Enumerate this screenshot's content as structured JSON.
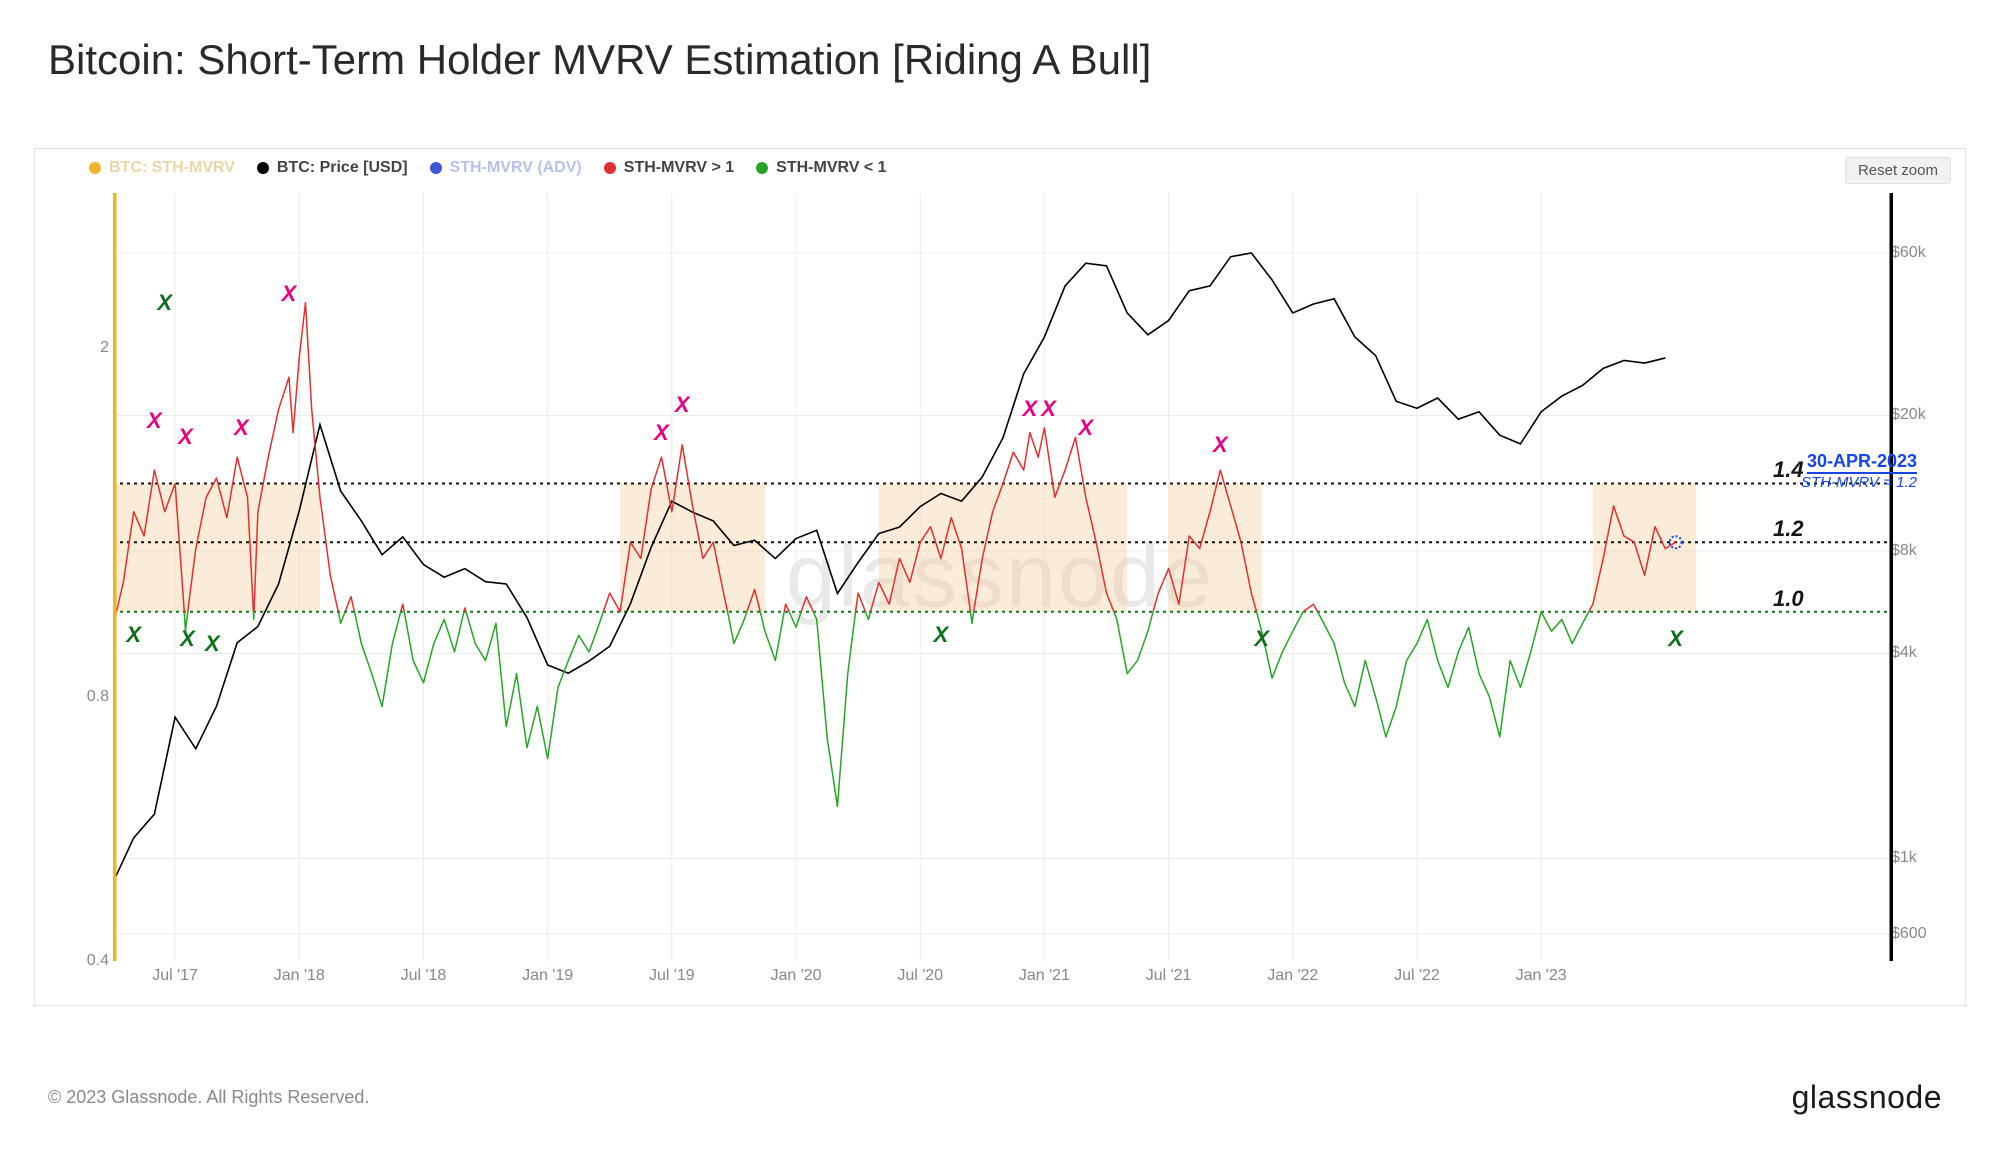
{
  "title": "Bitcoin: Short-Term Holder MVRV Estimation  [Riding A Bull]",
  "copyright": "© 2023 Glassnode. All Rights Reserved.",
  "brand": "glassnode",
  "watermark": "glassnode",
  "reset_label": "Reset zoom",
  "legend": [
    {
      "label": "BTC: STH-MVRV",
      "color": "#f0b42b",
      "muted": true
    },
    {
      "label": "BTC: Price [USD]",
      "color": "#000000",
      "muted": false
    },
    {
      "label": "STH-MVRV (ADV)",
      "color": "#3b57d6",
      "muted": true
    },
    {
      "label": "STH-MVRV > 1",
      "color": "#e22f2f",
      "muted": false
    },
    {
      "label": "STH-MVRV < 1",
      "color": "#2aa22a",
      "muted": false
    }
  ],
  "chart": {
    "type": "line-dual-axis",
    "background_color": "#ffffff",
    "grid_color": "#ececec",
    "plot_border_color": "#d6d6d6",
    "left_axis_color": "#f0b42b",
    "right_axis_color": "#000000",
    "x": {
      "domain_months": [
        0,
        86
      ],
      "ticks": [
        {
          "m": 3,
          "label": "Jul '17"
        },
        {
          "m": 9,
          "label": "Jan '18"
        },
        {
          "m": 15,
          "label": "Jul '18"
        },
        {
          "m": 21,
          "label": "Jan '19"
        },
        {
          "m": 27,
          "label": "Jul '19"
        },
        {
          "m": 33,
          "label": "Jan '20"
        },
        {
          "m": 39,
          "label": "Jul '20"
        },
        {
          "m": 45,
          "label": "Jan '21"
        },
        {
          "m": 51,
          "label": "Jul '21"
        },
        {
          "m": 57,
          "label": "Jan '22"
        },
        {
          "m": 63,
          "label": "Jul '22"
        },
        {
          "m": 69,
          "label": "Jan '23"
        }
      ]
    },
    "y_left": {
      "scale": "log",
      "domain": [
        0.4,
        3.0
      ],
      "ticks": [
        {
          "v": 0.4,
          "label": "0.4"
        },
        {
          "v": 0.8,
          "label": "0.8"
        },
        {
          "v": 2,
          "label": "2"
        }
      ],
      "grid_at": [
        0.4,
        0.8,
        2
      ]
    },
    "y_right": {
      "scale": "log",
      "domain": [
        500,
        90000
      ],
      "ticks": [
        {
          "v": 600,
          "label": "$600"
        },
        {
          "v": 1000,
          "label": "$1k"
        },
        {
          "v": 4000,
          "label": "$4k"
        },
        {
          "v": 8000,
          "label": "$8k"
        },
        {
          "v": 20000,
          "label": "$20k"
        },
        {
          "v": 60000,
          "label": "$60k"
        }
      ],
      "grid_at": [
        600,
        1000,
        4000,
        8000,
        20000,
        60000
      ]
    },
    "ref_lines": [
      {
        "v": 1.0,
        "label": "1.0",
        "color": "#12781a",
        "dash": "3 4",
        "width": 2
      },
      {
        "v": 1.2,
        "label": "1.2",
        "color": "#111111",
        "dash": "3 4",
        "width": 2
      },
      {
        "v": 1.4,
        "label": "1.4",
        "color": "#111111",
        "dash": "3 4",
        "width": 2
      }
    ],
    "shaded_bands": {
      "color": "#f5cd98",
      "opacity": 0.38,
      "y_from": 1.0,
      "y_to": 1.4,
      "x_ranges_m": [
        [
          0,
          10
        ],
        [
          24.5,
          31.5
        ],
        [
          37,
          49
        ],
        [
          51,
          55.5
        ],
        [
          71.5,
          76.5
        ]
      ]
    },
    "price_series": {
      "color": "#000000",
      "width": 1.6,
      "points": [
        [
          0,
          850
        ],
        [
          1,
          1150
        ],
        [
          2,
          1350
        ],
        [
          3,
          2600
        ],
        [
          4,
          2100
        ],
        [
          5,
          2800
        ],
        [
          6,
          4300
        ],
        [
          7,
          4800
        ],
        [
          8,
          6400
        ],
        [
          9,
          10500
        ],
        [
          10,
          18800
        ],
        [
          11,
          12000
        ],
        [
          12,
          9800
        ],
        [
          13,
          7800
        ],
        [
          14,
          8800
        ],
        [
          15,
          7300
        ],
        [
          16,
          6700
        ],
        [
          17,
          7100
        ],
        [
          18,
          6500
        ],
        [
          19,
          6400
        ],
        [
          20,
          5100
        ],
        [
          21,
          3700
        ],
        [
          22,
          3500
        ],
        [
          23,
          3800
        ],
        [
          24,
          4200
        ],
        [
          25,
          5600
        ],
        [
          26,
          8200
        ],
        [
          27,
          11200
        ],
        [
          28,
          10400
        ],
        [
          29,
          9800
        ],
        [
          30,
          8300
        ],
        [
          31,
          8600
        ],
        [
          32,
          7600
        ],
        [
          33,
          8700
        ],
        [
          34,
          9200
        ],
        [
          35,
          6000
        ],
        [
          36,
          7400
        ],
        [
          37,
          9000
        ],
        [
          38,
          9400
        ],
        [
          39,
          10800
        ],
        [
          40,
          11800
        ],
        [
          41,
          11200
        ],
        [
          42,
          13200
        ],
        [
          43,
          17200
        ],
        [
          44,
          26500
        ],
        [
          45,
          34000
        ],
        [
          46,
          48000
        ],
        [
          47,
          56000
        ],
        [
          48,
          55000
        ],
        [
          49,
          40000
        ],
        [
          50,
          34500
        ],
        [
          51,
          38000
        ],
        [
          52,
          46500
        ],
        [
          53,
          48000
        ],
        [
          54,
          58500
        ],
        [
          55,
          60000
        ],
        [
          56,
          50000
        ],
        [
          57,
          40000
        ],
        [
          58,
          42500
        ],
        [
          59,
          44000
        ],
        [
          60,
          34000
        ],
        [
          61,
          30000
        ],
        [
          62,
          22000
        ],
        [
          63,
          21000
        ],
        [
          64,
          22500
        ],
        [
          65,
          19500
        ],
        [
          66,
          20500
        ],
        [
          67,
          17500
        ],
        [
          68,
          16500
        ],
        [
          69,
          20500
        ],
        [
          70,
          22800
        ],
        [
          71,
          24500
        ],
        [
          72,
          27500
        ],
        [
          73,
          29000
        ],
        [
          74,
          28500
        ],
        [
          75,
          29500
        ]
      ]
    },
    "mvrv_series": {
      "color_above": "#e22f2f",
      "color_below": "#29a329",
      "width": 1.5,
      "points": [
        [
          0,
          0.96
        ],
        [
          0.5,
          1.08
        ],
        [
          1,
          1.3
        ],
        [
          1.5,
          1.22
        ],
        [
          2,
          1.45
        ],
        [
          2.5,
          1.3
        ],
        [
          3,
          1.4
        ],
        [
          3.5,
          0.95
        ],
        [
          4,
          1.18
        ],
        [
          4.5,
          1.35
        ],
        [
          5,
          1.42
        ],
        [
          5.5,
          1.28
        ],
        [
          6,
          1.5
        ],
        [
          6.5,
          1.35
        ],
        [
          6.8,
          0.98
        ],
        [
          7,
          1.3
        ],
        [
          7.5,
          1.5
        ],
        [
          8,
          1.7
        ],
        [
          8.5,
          1.85
        ],
        [
          8.7,
          1.6
        ],
        [
          9,
          1.95
        ],
        [
          9.3,
          2.25
        ],
        [
          9.6,
          1.7
        ],
        [
          10,
          1.35
        ],
        [
          10.5,
          1.1
        ],
        [
          11,
          0.97
        ],
        [
          11.5,
          1.04
        ],
        [
          12,
          0.92
        ],
        [
          12.5,
          0.85
        ],
        [
          13,
          0.78
        ],
        [
          13.5,
          0.92
        ],
        [
          14,
          1.02
        ],
        [
          14.5,
          0.88
        ],
        [
          15,
          0.83
        ],
        [
          15.5,
          0.92
        ],
        [
          16,
          0.98
        ],
        [
          16.5,
          0.9
        ],
        [
          17,
          1.01
        ],
        [
          17.5,
          0.92
        ],
        [
          18,
          0.88
        ],
        [
          18.5,
          0.97
        ],
        [
          19,
          0.74
        ],
        [
          19.5,
          0.85
        ],
        [
          20,
          0.7
        ],
        [
          20.5,
          0.78
        ],
        [
          21,
          0.68
        ],
        [
          21.5,
          0.82
        ],
        [
          22,
          0.88
        ],
        [
          22.5,
          0.94
        ],
        [
          23,
          0.9
        ],
        [
          23.5,
          0.97
        ],
        [
          24,
          1.05
        ],
        [
          24.5,
          1.0
        ],
        [
          25,
          1.2
        ],
        [
          25.5,
          1.15
        ],
        [
          26,
          1.38
        ],
        [
          26.5,
          1.5
        ],
        [
          27,
          1.3
        ],
        [
          27.5,
          1.55
        ],
        [
          28,
          1.32
        ],
        [
          28.5,
          1.15
        ],
        [
          29,
          1.2
        ],
        [
          29.5,
          1.05
        ],
        [
          30,
          0.92
        ],
        [
          30.5,
          0.98
        ],
        [
          31,
          1.06
        ],
        [
          31.5,
          0.95
        ],
        [
          32,
          0.88
        ],
        [
          32.5,
          1.02
        ],
        [
          33,
          0.96
        ],
        [
          33.5,
          1.04
        ],
        [
          34,
          0.98
        ],
        [
          34.5,
          0.72
        ],
        [
          35,
          0.6
        ],
        [
          35.5,
          0.85
        ],
        [
          36,
          1.05
        ],
        [
          36.5,
          0.98
        ],
        [
          37,
          1.08
        ],
        [
          37.5,
          1.02
        ],
        [
          38,
          1.15
        ],
        [
          38.5,
          1.08
        ],
        [
          39,
          1.2
        ],
        [
          39.5,
          1.25
        ],
        [
          40,
          1.15
        ],
        [
          40.5,
          1.28
        ],
        [
          41,
          1.18
        ],
        [
          41.5,
          0.97
        ],
        [
          42,
          1.15
        ],
        [
          42.5,
          1.3
        ],
        [
          43,
          1.4
        ],
        [
          43.5,
          1.52
        ],
        [
          44,
          1.45
        ],
        [
          44.3,
          1.6
        ],
        [
          44.7,
          1.5
        ],
        [
          45,
          1.62
        ],
        [
          45.5,
          1.35
        ],
        [
          46,
          1.45
        ],
        [
          46.5,
          1.58
        ],
        [
          47,
          1.35
        ],
        [
          47.5,
          1.2
        ],
        [
          48,
          1.05
        ],
        [
          48.5,
          0.98
        ],
        [
          49,
          0.85
        ],
        [
          49.5,
          0.88
        ],
        [
          50,
          0.95
        ],
        [
          50.5,
          1.05
        ],
        [
          51,
          1.12
        ],
        [
          51.5,
          1.02
        ],
        [
          52,
          1.22
        ],
        [
          52.5,
          1.18
        ],
        [
          53,
          1.3
        ],
        [
          53.5,
          1.45
        ],
        [
          54,
          1.32
        ],
        [
          54.5,
          1.2
        ],
        [
          55,
          1.05
        ],
        [
          55.5,
          0.95
        ],
        [
          56,
          0.84
        ],
        [
          56.5,
          0.9
        ],
        [
          57,
          0.95
        ],
        [
          57.5,
          1.0
        ],
        [
          58,
          1.02
        ],
        [
          58.5,
          0.97
        ],
        [
          59,
          0.92
        ],
        [
          59.5,
          0.83
        ],
        [
          60,
          0.78
        ],
        [
          60.5,
          0.88
        ],
        [
          61,
          0.8
        ],
        [
          61.5,
          0.72
        ],
        [
          62,
          0.78
        ],
        [
          62.5,
          0.88
        ],
        [
          63,
          0.92
        ],
        [
          63.5,
          0.98
        ],
        [
          64,
          0.88
        ],
        [
          64.5,
          0.82
        ],
        [
          65,
          0.9
        ],
        [
          65.5,
          0.96
        ],
        [
          66,
          0.85
        ],
        [
          66.5,
          0.8
        ],
        [
          67,
          0.72
        ],
        [
          67.5,
          0.88
        ],
        [
          68,
          0.82
        ],
        [
          68.5,
          0.9
        ],
        [
          69,
          1.0
        ],
        [
          69.5,
          0.95
        ],
        [
          70,
          0.98
        ],
        [
          70.5,
          0.92
        ],
        [
          71,
          0.97
        ],
        [
          71.5,
          1.02
        ],
        [
          72,
          1.15
        ],
        [
          72.5,
          1.32
        ],
        [
          73,
          1.22
        ],
        [
          73.5,
          1.2
        ],
        [
          74,
          1.1
        ],
        [
          74.5,
          1.25
        ],
        [
          75,
          1.18
        ],
        [
          75.5,
          1.2
        ]
      ]
    },
    "x_marks": [
      {
        "m": 1,
        "v": 0.94,
        "color": "#0f6f1a"
      },
      {
        "m": 3.6,
        "v": 0.93,
        "color": "#0f6f1a"
      },
      {
        "m": 4.8,
        "v": 0.92,
        "color": "#0f6f1a"
      },
      {
        "m": 2.5,
        "v": 2.25,
        "color": "#0f6f1a"
      },
      {
        "m": 2,
        "v": 1.65,
        "color": "#e6007e"
      },
      {
        "m": 3.5,
        "v": 1.58,
        "color": "#e6007e"
      },
      {
        "m": 6.2,
        "v": 1.62,
        "color": "#e6007e"
      },
      {
        "m": 8.5,
        "v": 2.3,
        "color": "#e6007e"
      },
      {
        "m": 26.5,
        "v": 1.6,
        "color": "#e6007e"
      },
      {
        "m": 27.5,
        "v": 1.72,
        "color": "#e6007e"
      },
      {
        "m": 40,
        "v": 0.94,
        "color": "#0f6f1a"
      },
      {
        "m": 44.3,
        "v": 1.7,
        "color": "#e6007e"
      },
      {
        "m": 45.2,
        "v": 1.7,
        "color": "#e6007e"
      },
      {
        "m": 47,
        "v": 1.62,
        "color": "#e6007e"
      },
      {
        "m": 53.5,
        "v": 1.55,
        "color": "#e6007e"
      },
      {
        "m": 55.5,
        "v": 0.93,
        "color": "#0f6f1a"
      },
      {
        "m": 75.5,
        "v": 0.93,
        "color": "#0f6f1a"
      }
    ],
    "callout": {
      "date": "30-APR-2023",
      "sub": "STH-MVRV = 1.2",
      "ymvrv": 1.2,
      "marker_color": "#1745e8"
    }
  }
}
